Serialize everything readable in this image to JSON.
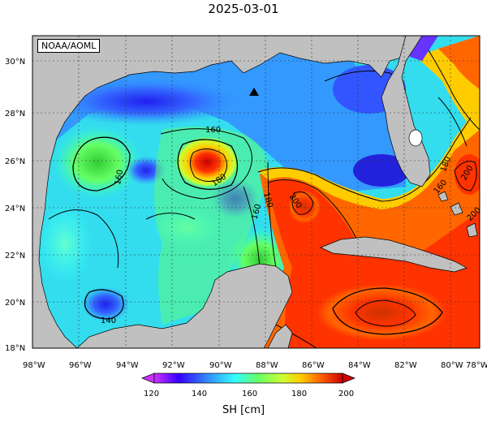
{
  "title": "2025-03-01",
  "credit": "NOAA/AOML",
  "lat_labels": [
    "30°N",
    "28°N",
    "26°N",
    "24°N",
    "22°N",
    "20°N",
    "18°N"
  ],
  "lon_labels": [
    "98°W",
    "96°W",
    "94°W",
    "92°W",
    "90°W",
    "88°W",
    "86°W",
    "84°W",
    "82°W",
    "80°W",
    "78°W"
  ],
  "colorbar": {
    "ticks": [
      "120",
      "140",
      "160",
      "180",
      "200"
    ],
    "label": "SH [cm]",
    "range": [
      115,
      205
    ],
    "colors": [
      "#cc33ff",
      "#3300ff",
      "#3399ff",
      "#33ffff",
      "#66ff66",
      "#ccff33",
      "#ffcc00",
      "#ff6600",
      "#ff3300",
      "#cc0000"
    ]
  },
  "contour_labels": [
    "160",
    "160",
    "180",
    "180",
    "200",
    "160",
    "160",
    "180",
    "200",
    "140",
    "200"
  ],
  "marker": "buoy-triangle"
}
